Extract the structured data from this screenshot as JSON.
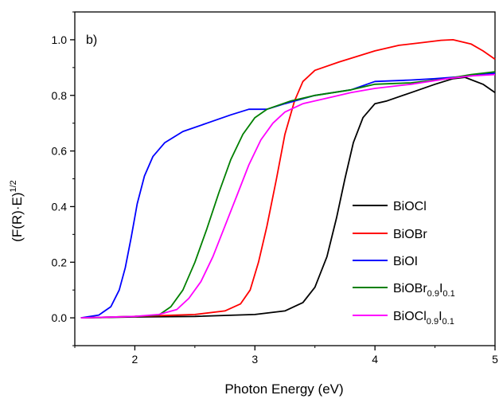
{
  "chart_data": {
    "type": "line",
    "panel_label": "b)",
    "xlabel": "Photon Energy (eV)",
    "ylabel_main": "(F(R)·E)",
    "ylabel_sup": "1/2",
    "xlim": [
      1.5,
      5.0
    ],
    "ylim": [
      -0.1,
      1.1
    ],
    "x_ticks": [
      2,
      3,
      4,
      5
    ],
    "y_ticks": [
      0.0,
      0.2,
      0.4,
      0.6,
      0.8,
      1.0
    ],
    "x_tick_labels": [
      "2",
      "3",
      "4",
      "5"
    ],
    "y_tick_labels": [
      "0.0",
      "0.2",
      "0.4",
      "0.6",
      "0.8",
      "1.0"
    ],
    "grid": false,
    "legend_position": "lower-right",
    "series": [
      {
        "name": "BiOCl",
        "label_base": "BiOCl",
        "label_parts": [],
        "color": "#000000",
        "points": [
          [
            1.55,
            0.0
          ],
          [
            2.0,
            0.003
          ],
          [
            2.5,
            0.005
          ],
          [
            3.0,
            0.012
          ],
          [
            3.25,
            0.025
          ],
          [
            3.4,
            0.055
          ],
          [
            3.5,
            0.11
          ],
          [
            3.6,
            0.22
          ],
          [
            3.68,
            0.36
          ],
          [
            3.75,
            0.5
          ],
          [
            3.82,
            0.63
          ],
          [
            3.9,
            0.72
          ],
          [
            4.0,
            0.77
          ],
          [
            4.1,
            0.78
          ],
          [
            4.3,
            0.81
          ],
          [
            4.5,
            0.84
          ],
          [
            4.65,
            0.86
          ],
          [
            4.75,
            0.865
          ],
          [
            4.9,
            0.84
          ],
          [
            5.0,
            0.81
          ]
        ]
      },
      {
        "name": "BiOBr",
        "label_base": "BiOBr",
        "label_parts": [],
        "color": "#ff0000",
        "points": [
          [
            1.55,
            0.0
          ],
          [
            2.0,
            0.005
          ],
          [
            2.5,
            0.012
          ],
          [
            2.75,
            0.025
          ],
          [
            2.88,
            0.05
          ],
          [
            2.96,
            0.1
          ],
          [
            3.03,
            0.2
          ],
          [
            3.1,
            0.33
          ],
          [
            3.18,
            0.5
          ],
          [
            3.25,
            0.66
          ],
          [
            3.33,
            0.78
          ],
          [
            3.4,
            0.85
          ],
          [
            3.5,
            0.89
          ],
          [
            3.7,
            0.92
          ],
          [
            4.0,
            0.96
          ],
          [
            4.2,
            0.98
          ],
          [
            4.4,
            0.99
          ],
          [
            4.55,
            0.998
          ],
          [
            4.65,
            1.0
          ],
          [
            4.8,
            0.985
          ],
          [
            4.9,
            0.96
          ],
          [
            5.0,
            0.93
          ]
        ]
      },
      {
        "name": "BiOI",
        "label_base": "BiOI",
        "label_parts": [],
        "color": "#0000ff",
        "points": [
          [
            1.55,
            0.0
          ],
          [
            1.7,
            0.01
          ],
          [
            1.8,
            0.04
          ],
          [
            1.87,
            0.1
          ],
          [
            1.92,
            0.18
          ],
          [
            1.97,
            0.29
          ],
          [
            2.02,
            0.41
          ],
          [
            2.08,
            0.51
          ],
          [
            2.15,
            0.58
          ],
          [
            2.25,
            0.63
          ],
          [
            2.4,
            0.67
          ],
          [
            2.6,
            0.7
          ],
          [
            2.8,
            0.73
          ],
          [
            2.95,
            0.75
          ],
          [
            3.1,
            0.75
          ],
          [
            3.25,
            0.77
          ],
          [
            3.5,
            0.8
          ],
          [
            3.8,
            0.82
          ],
          [
            4.0,
            0.85
          ],
          [
            4.3,
            0.855
          ],
          [
            4.5,
            0.86
          ],
          [
            4.8,
            0.87
          ],
          [
            5.0,
            0.88
          ]
        ]
      },
      {
        "name": "BiOBr0.9I0.1",
        "label_base": "BiOBr",
        "label_parts": [
          [
            "0.9",
            "I"
          ],
          [
            "0.1",
            ""
          ]
        ],
        "color": "#008000",
        "points": [
          [
            1.55,
            0.0
          ],
          [
            2.0,
            0.005
          ],
          [
            2.2,
            0.01
          ],
          [
            2.3,
            0.04
          ],
          [
            2.4,
            0.1
          ],
          [
            2.5,
            0.2
          ],
          [
            2.6,
            0.32
          ],
          [
            2.7,
            0.45
          ],
          [
            2.8,
            0.57
          ],
          [
            2.9,
            0.66
          ],
          [
            3.0,
            0.72
          ],
          [
            3.1,
            0.75
          ],
          [
            3.3,
            0.78
          ],
          [
            3.5,
            0.8
          ],
          [
            3.8,
            0.82
          ],
          [
            4.0,
            0.84
          ],
          [
            4.3,
            0.845
          ],
          [
            4.6,
            0.86
          ],
          [
            4.8,
            0.875
          ],
          [
            5.0,
            0.885
          ]
        ]
      },
      {
        "name": "BiOCl0.9I0.1",
        "label_base": "BiOCl",
        "label_parts": [
          [
            "0.9",
            "I"
          ],
          [
            "0.1",
            ""
          ]
        ],
        "color": "#ff00ff",
        "points": [
          [
            1.55,
            0.0
          ],
          [
            2.0,
            0.005
          ],
          [
            2.2,
            0.012
          ],
          [
            2.35,
            0.03
          ],
          [
            2.45,
            0.07
          ],
          [
            2.55,
            0.13
          ],
          [
            2.65,
            0.22
          ],
          [
            2.75,
            0.33
          ],
          [
            2.85,
            0.44
          ],
          [
            2.95,
            0.55
          ],
          [
            3.05,
            0.64
          ],
          [
            3.15,
            0.7
          ],
          [
            3.25,
            0.74
          ],
          [
            3.4,
            0.77
          ],
          [
            3.6,
            0.79
          ],
          [
            3.8,
            0.81
          ],
          [
            4.0,
            0.825
          ],
          [
            4.3,
            0.84
          ],
          [
            4.6,
            0.86
          ],
          [
            4.8,
            0.87
          ],
          [
            5.0,
            0.875
          ]
        ]
      }
    ]
  }
}
